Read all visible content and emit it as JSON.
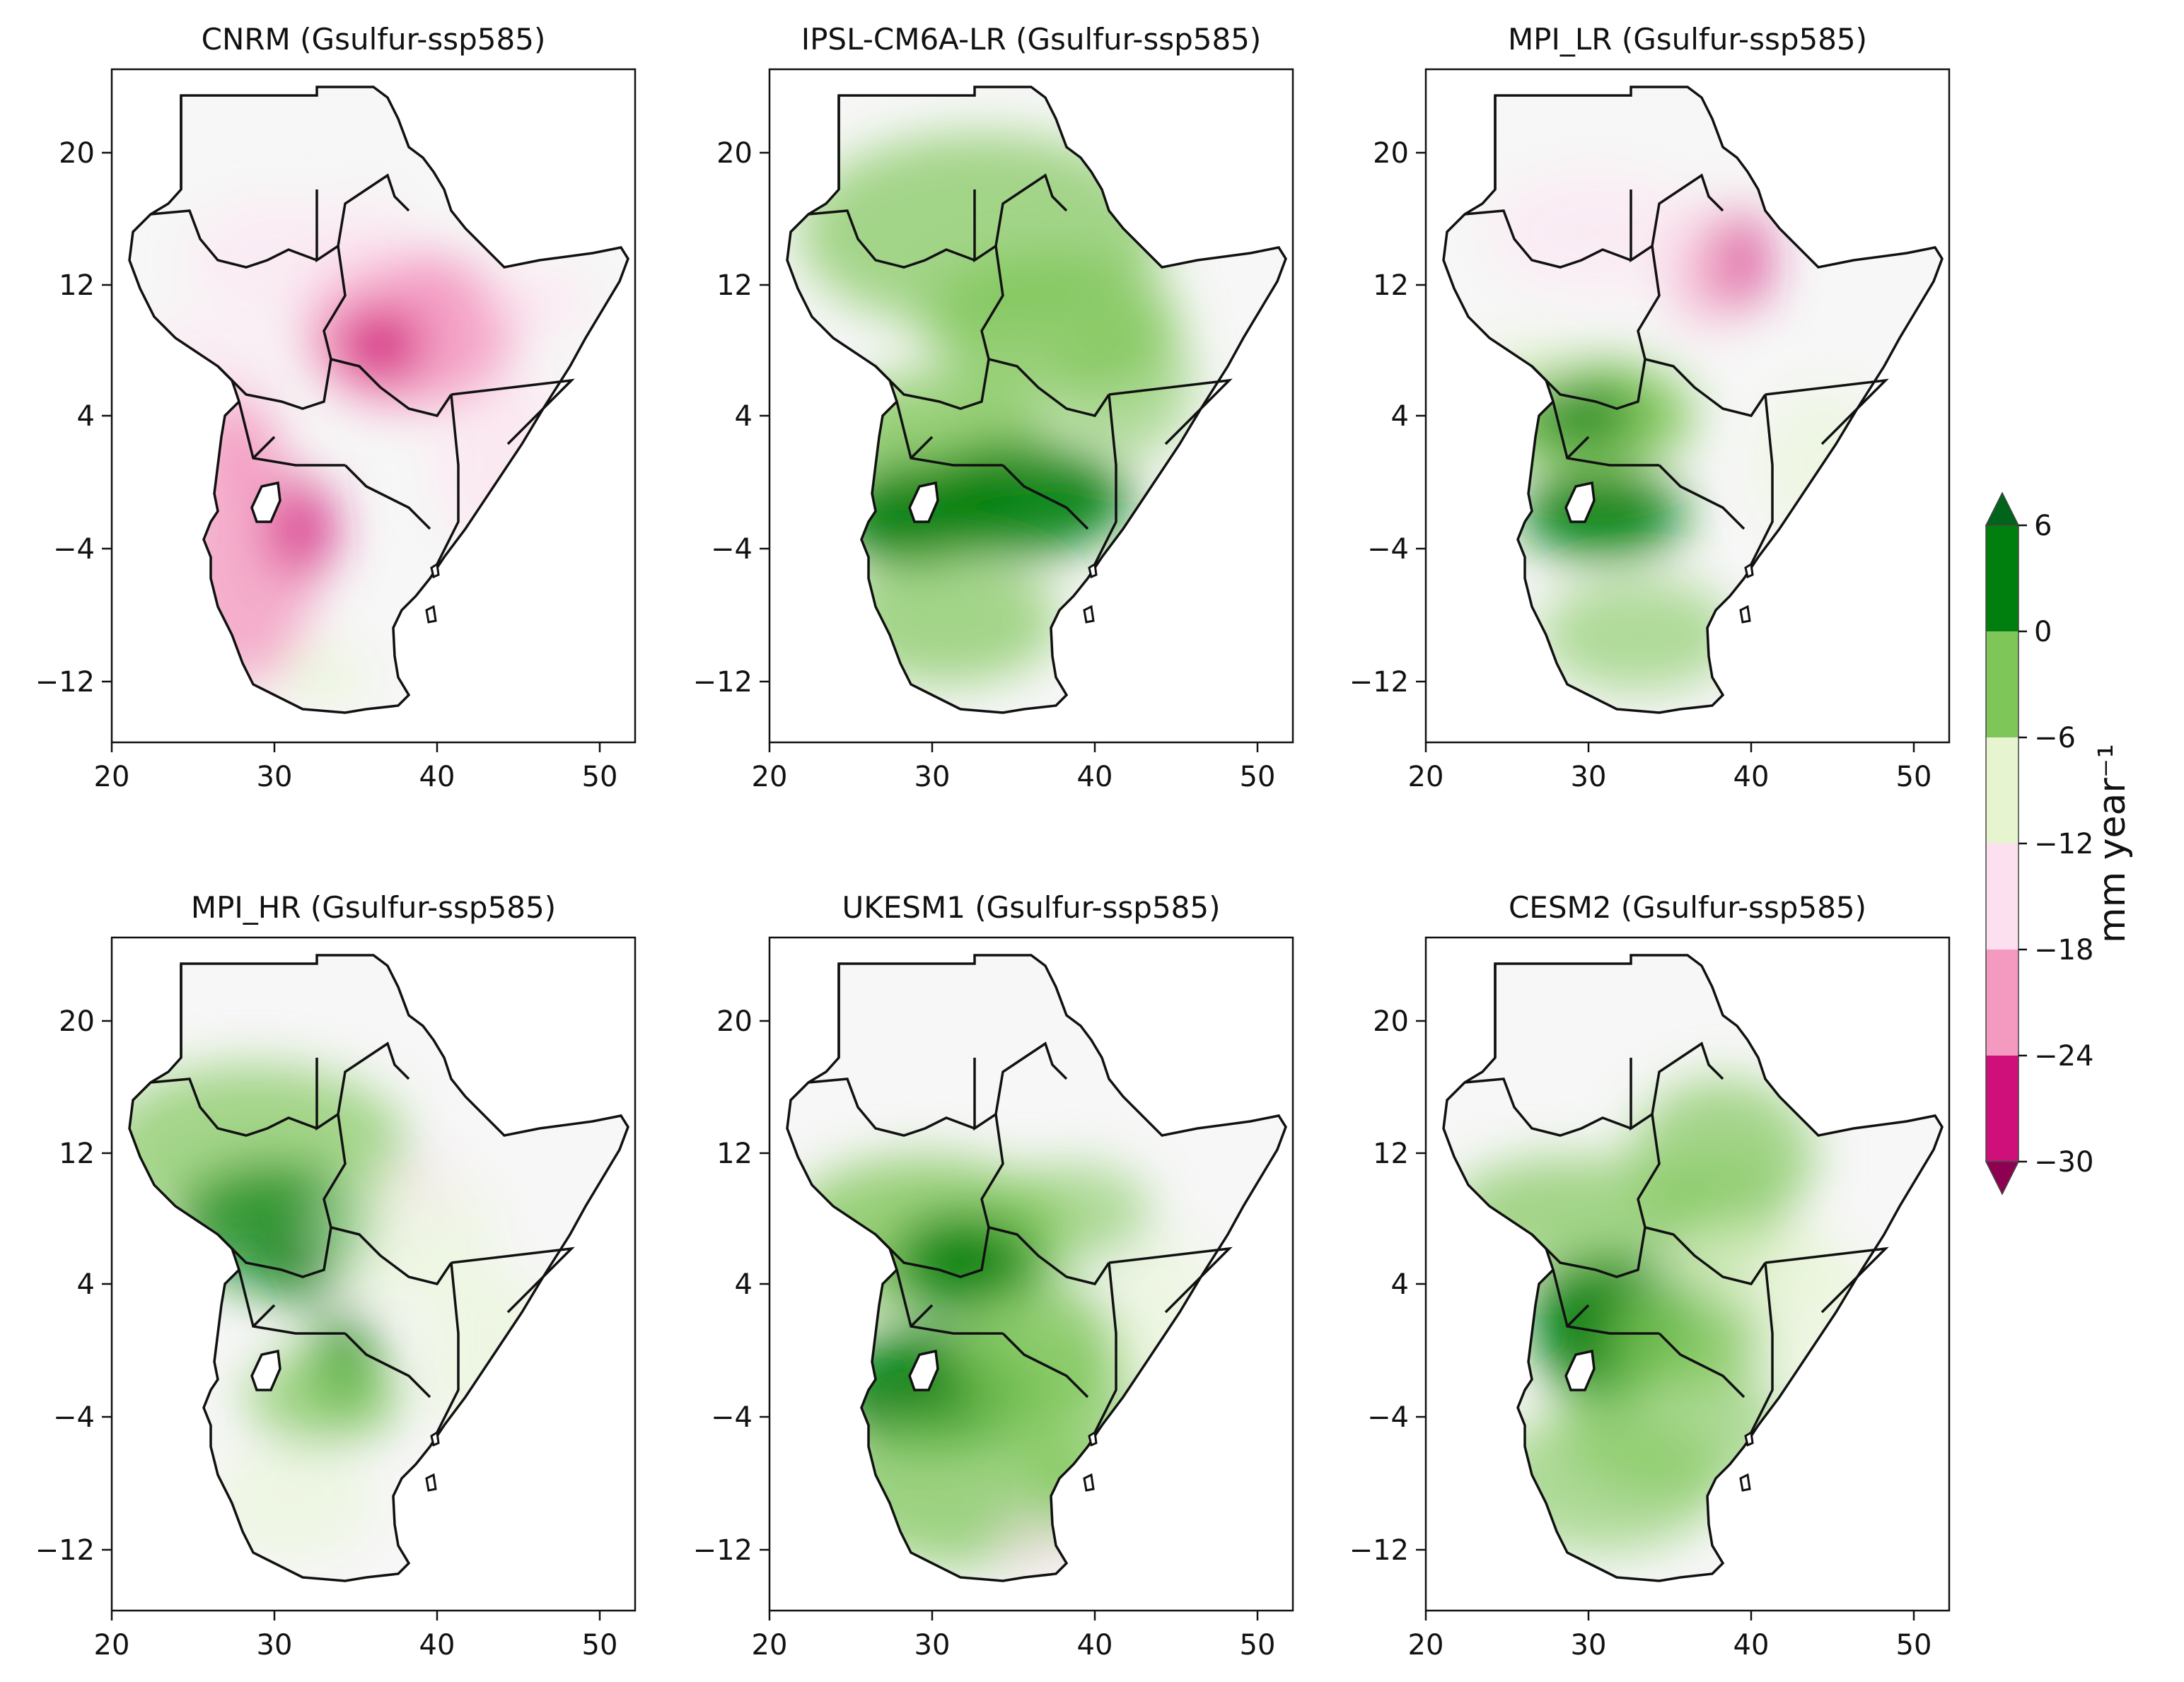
{
  "figure": {
    "panels": [
      {
        "title": "CNRM (Gsulfur-ssp585)",
        "pattern": "cnrm"
      },
      {
        "title": "IPSL-CM6A-LR (Gsulfur-ssp585)",
        "pattern": "ipsl"
      },
      {
        "title": "MPI_LR (Gsulfur-ssp585)",
        "pattern": "mpilr"
      },
      {
        "title": "MPI_HR (Gsulfur-ssp585)",
        "pattern": "mpihr"
      },
      {
        "title": "UKESM1 (Gsulfur-ssp585)",
        "pattern": "ukesm"
      },
      {
        "title": "CESM2 (Gsulfur-ssp585)",
        "pattern": "cesm"
      }
    ],
    "axes": {
      "lon_ticks": [
        "20",
        "30",
        "40",
        "50"
      ],
      "lat_ticks": [
        "20",
        "12",
        "4",
        "−4",
        "−12"
      ]
    },
    "colorbar": {
      "label": "mm year⁻¹",
      "ticks": [
        "6",
        "0",
        "−6",
        "−12",
        "−18",
        "−24",
        "−30"
      ],
      "colors": [
        "#007f0e",
        "#7fc659",
        "#e6f5d0",
        "#fde0ef",
        "#f49ac1",
        "#d0107a"
      ],
      "extend_high_color": "#00641a",
      "extend_low_color": "#8e0152"
    },
    "land_base_color": "#f7f7f7"
  }
}
